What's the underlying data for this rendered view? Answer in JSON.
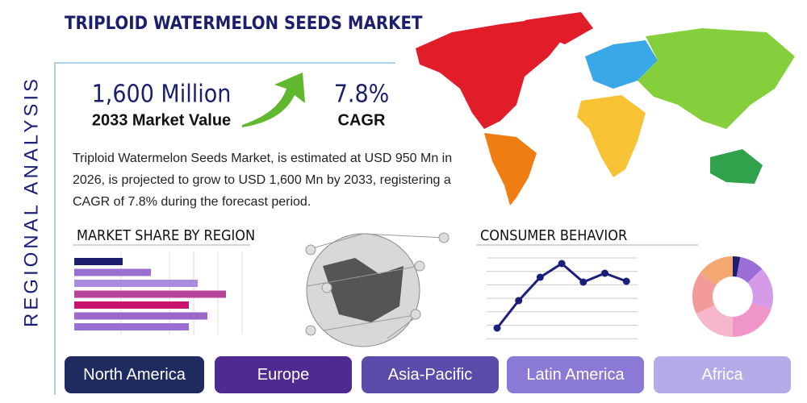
{
  "header": {
    "title": "TRIPLOID WATERMELON SEEDS MARKET",
    "side_label": "REGIONAL ANALYSIS"
  },
  "stats": [
    {
      "value": "1,600 Million",
      "label": "2033 Market Value"
    },
    {
      "value": "7.8%",
      "label": "CAGR"
    }
  ],
  "description": "Triploid Watermelon Seeds Market, is estimated at USD 950 Mn in 2026, is projected to grow to USD 1,600 Mn by 2033, registering a CAGR of 7.8% during the forecast period.",
  "market_share": {
    "title": "MARKET SHARE BY REGION",
    "values": [
      60,
      95,
      153,
      188,
      142,
      165,
      142
    ],
    "colors": [
      "#1c1f6e",
      "#9b6fd0",
      "#a98be0",
      "#b8449a",
      "#c8126e",
      "#9e68c8",
      "#9a70d4"
    ],
    "xlim": [
      0,
      220
    ]
  },
  "consumer_behavior": {
    "title": "CONSUMER BEHAVIOR",
    "values": [
      13,
      47,
      76,
      93,
      70,
      81,
      71
    ],
    "ylim": [
      0,
      100
    ],
    "color": "#1c1f7a"
  },
  "donut": {
    "values": [
      3,
      10,
      17,
      20,
      18,
      17,
      15
    ],
    "colors": [
      "#1c1f6e",
      "#9b6fd8",
      "#d59be8",
      "#f095c8",
      "#f6b6cc",
      "#f39a9a",
      "#f2a870"
    ]
  },
  "regions": [
    "North America",
    "Europe",
    "Asia-Pacific",
    "Latin America",
    "Africa"
  ],
  "region_colors": [
    "#1f2b5e",
    "#4f2a90",
    "#5b4cab",
    "#8a7ad6",
    "#b3ace8"
  ]
}
